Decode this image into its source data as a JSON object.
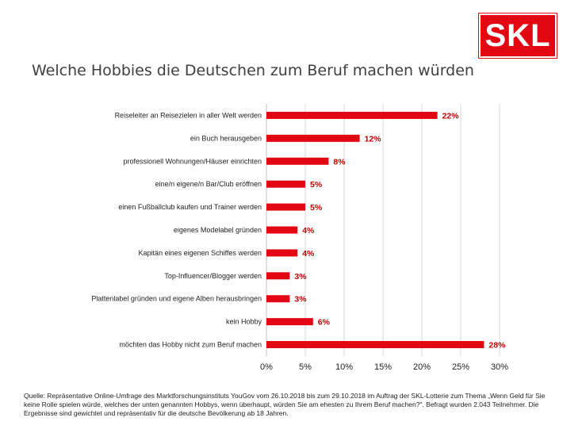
{
  "logo": {
    "text": "SKL"
  },
  "title": "Welche Hobbies die Deutschen zum Beruf machen würden",
  "source": "Quelle: Repräsentative Online-Umfrage des Marktforschungsinstituts YouGov vom 26.10.2018 bis zum 29.10.2018 im Auftrag der SKL-Lotterie zum Thema „Wenn Geld für Sie keine Rolle spielen würde, welches der unten genannten Hobbys, wenn überhaupt, würden Sie am ehesten zu Ihrem Beruf machen?\". Befragt wurden 2.043 Teilnehmer. Die Ergebnisse sind gewichtet und repräsentativ für die deutsche Bevölkerung ab 18 Jahren.",
  "colors": {
    "bar": "#e30613",
    "label": "#c00000",
    "grid": "#d9d9d9",
    "logo": "#e30613"
  },
  "chart_data": {
    "type": "bar",
    "orientation": "horizontal",
    "title": "Welche Hobbies die Deutschen zum Beruf machen würden",
    "categories": [
      "Reiseleiter an Reisezielen in aller Welt werden",
      "ein Buch herausgeben",
      "professionell Wohnungen/Häuser einrichten",
      "eine/n eigene/n Bar/Club eröffnen",
      "einen Fußballclub kaufen und Trainer werden",
      "eigenes Modelabel gründen",
      "Kapitän eines eigenen Schiffes werden",
      "Top-Influencer/Blogger werden",
      "Plattenlabel gründen und eigene Alben herausbringen",
      "kein Hobby",
      "möchten das Hobby nicht zum Beruf machen"
    ],
    "values": [
      22,
      12,
      8,
      5,
      5,
      4,
      4,
      3,
      3,
      6,
      28
    ],
    "value_labels": [
      "22%",
      "12%",
      "8%",
      "5%",
      "5%",
      "4%",
      "4%",
      "3%",
      "3%",
      "6%",
      "28%"
    ],
    "xlim": [
      0,
      30
    ],
    "xticks": [
      0,
      5,
      10,
      15,
      20,
      25,
      30
    ],
    "xtick_labels": [
      "0%",
      "5%",
      "10%",
      "15%",
      "20%",
      "25%",
      "30%"
    ],
    "grid": true,
    "legend": "none"
  }
}
